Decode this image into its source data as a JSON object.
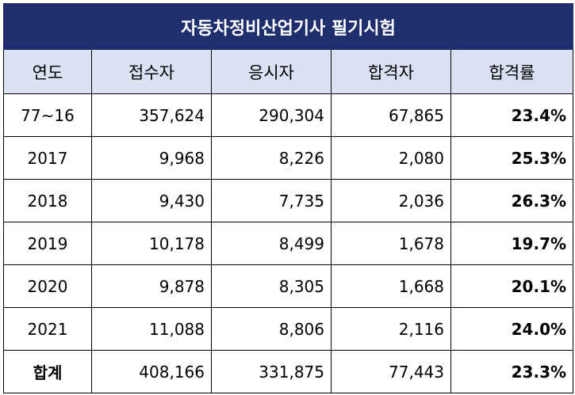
{
  "title": "자동차정비산업기사 필기시험",
  "headers": [
    "연도",
    "접수자",
    "응시자",
    "합격자",
    "합격률"
  ],
  "rows": [
    {
      "year": "77~16",
      "applicants": "357,624",
      "examinees": "290,304",
      "passers": "67,865",
      "rate": "23.4%"
    },
    {
      "year": "2017",
      "applicants": "9,968",
      "examinees": "8,226",
      "passers": "2,080",
      "rate": "25.3%"
    },
    {
      "year": "2018",
      "applicants": "9,430",
      "examinees": "7,735",
      "passers": "2,036",
      "rate": "26.3%"
    },
    {
      "year": "2019",
      "applicants": "10,178",
      "examinees": "8,499",
      "passers": "1,678",
      "rate": "19.7%"
    },
    {
      "year": "2020",
      "applicants": "9,878",
      "examinees": "8,305",
      "passers": "1,668",
      "rate": "20.1%"
    },
    {
      "year": "2021",
      "applicants": "11,088",
      "examinees": "8,806",
      "passers": "2,116",
      "rate": "24.0%"
    }
  ],
  "total": {
    "label": "합계",
    "applicants": "408,166",
    "examinees": "331,875",
    "passers": "77,443",
    "rate": "23.3%"
  },
  "colors": {
    "title_bg": "#1f2f6e",
    "header_bg": "#d9e1f2"
  }
}
